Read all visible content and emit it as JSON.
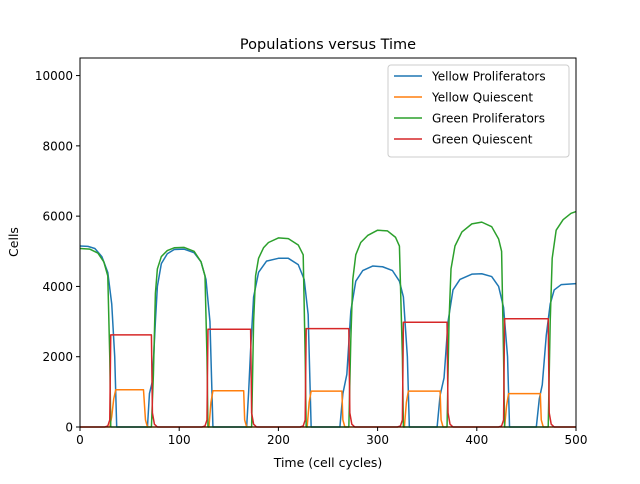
{
  "chart_data": {
    "type": "line",
    "title": "Populations versus Time",
    "xlabel": "Time (cell cycles)",
    "ylabel": "Cells",
    "xlim": [
      0,
      500
    ],
    "ylim": [
      0,
      10500
    ],
    "xticks": [
      0,
      100,
      200,
      300,
      400,
      500
    ],
    "yticks": [
      0,
      2000,
      4000,
      6000,
      8000,
      10000
    ],
    "grid": false,
    "legend_position": "top-right",
    "series": [
      {
        "name": "Yellow Proliferators",
        "color": "#1f77b4",
        "points": [
          [
            0,
            5150
          ],
          [
            8,
            5140
          ],
          [
            15,
            5080
          ],
          [
            22,
            4850
          ],
          [
            28,
            4400
          ],
          [
            32,
            3500
          ],
          [
            35,
            2000
          ],
          [
            37,
            0
          ],
          [
            68,
            0
          ],
          [
            70,
            950
          ],
          [
            73,
            1300
          ],
          [
            76,
            3000
          ],
          [
            78,
            4000
          ],
          [
            82,
            4650
          ],
          [
            88,
            4930
          ],
          [
            95,
            5050
          ],
          [
            105,
            5060
          ],
          [
            115,
            4960
          ],
          [
            122,
            4700
          ],
          [
            127,
            4200
          ],
          [
            131,
            3000
          ],
          [
            134,
            0
          ],
          [
            168,
            0
          ],
          [
            170,
            1000
          ],
          [
            172,
            2200
          ],
          [
            175,
            3700
          ],
          [
            180,
            4400
          ],
          [
            188,
            4720
          ],
          [
            200,
            4800
          ],
          [
            210,
            4800
          ],
          [
            220,
            4620
          ],
          [
            226,
            4200
          ],
          [
            230,
            3200
          ],
          [
            233,
            0
          ],
          [
            262,
            0
          ],
          [
            265,
            950
          ],
          [
            269,
            1500
          ],
          [
            273,
            3300
          ],
          [
            278,
            4150
          ],
          [
            285,
            4450
          ],
          [
            295,
            4580
          ],
          [
            305,
            4560
          ],
          [
            315,
            4450
          ],
          [
            322,
            4150
          ],
          [
            326,
            3700
          ],
          [
            330,
            2000
          ],
          [
            332,
            0
          ],
          [
            360,
            0
          ],
          [
            363,
            900
          ],
          [
            367,
            1400
          ],
          [
            371,
            3000
          ],
          [
            376,
            3900
          ],
          [
            383,
            4200
          ],
          [
            395,
            4350
          ],
          [
            405,
            4360
          ],
          [
            415,
            4280
          ],
          [
            422,
            4000
          ],
          [
            427,
            3400
          ],
          [
            431,
            2000
          ],
          [
            433,
            0
          ],
          [
            460,
            0
          ],
          [
            463,
            800
          ],
          [
            466,
            1200
          ],
          [
            470,
            2600
          ],
          [
            474,
            3500
          ],
          [
            478,
            3900
          ],
          [
            485,
            4050
          ],
          [
            500,
            4080
          ]
        ]
      },
      {
        "name": "Yellow Quiescent",
        "color": "#ff7f0e",
        "points": [
          [
            0,
            0
          ],
          [
            30,
            0
          ],
          [
            32,
            300
          ],
          [
            34,
            800
          ],
          [
            36,
            1060
          ],
          [
            62,
            1060
          ],
          [
            64,
            1060
          ],
          [
            66,
            200
          ],
          [
            68,
            0
          ],
          [
            130,
            0
          ],
          [
            132,
            700
          ],
          [
            134,
            1030
          ],
          [
            165,
            1030
          ],
          [
            166,
            200
          ],
          [
            168,
            0
          ],
          [
            229,
            0
          ],
          [
            231,
            700
          ],
          [
            233,
            1020
          ],
          [
            264,
            1020
          ],
          [
            265,
            200
          ],
          [
            267,
            0
          ],
          [
            327,
            0
          ],
          [
            329,
            700
          ],
          [
            331,
            1020
          ],
          [
            363,
            1020
          ],
          [
            364,
            200
          ],
          [
            366,
            0
          ],
          [
            428,
            0
          ],
          [
            430,
            600
          ],
          [
            432,
            950
          ],
          [
            464,
            950
          ],
          [
            465,
            200
          ],
          [
            467,
            0
          ],
          [
            500,
            0
          ]
        ]
      },
      {
        "name": "Green Proliferators",
        "color": "#2ca02c",
        "points": [
          [
            0,
            5080
          ],
          [
            10,
            5060
          ],
          [
            18,
            4950
          ],
          [
            24,
            4700
          ],
          [
            28,
            4300
          ],
          [
            30,
            2000
          ],
          [
            31,
            0
          ],
          [
            72,
            0
          ],
          [
            74,
            1500
          ],
          [
            76,
            3800
          ],
          [
            78,
            4500
          ],
          [
            82,
            4850
          ],
          [
            88,
            5020
          ],
          [
            95,
            5100
          ],
          [
            105,
            5110
          ],
          [
            115,
            5000
          ],
          [
            122,
            4700
          ],
          [
            126,
            4300
          ],
          [
            128,
            2000
          ],
          [
            129,
            0
          ],
          [
            173,
            0
          ],
          [
            175,
            3000
          ],
          [
            177,
            4300
          ],
          [
            180,
            4800
          ],
          [
            185,
            5100
          ],
          [
            190,
            5250
          ],
          [
            200,
            5380
          ],
          [
            210,
            5360
          ],
          [
            220,
            5180
          ],
          [
            225,
            4900
          ],
          [
            227,
            2000
          ],
          [
            228,
            0
          ],
          [
            271,
            0
          ],
          [
            273,
            2500
          ],
          [
            275,
            4200
          ],
          [
            278,
            4900
          ],
          [
            283,
            5250
          ],
          [
            290,
            5450
          ],
          [
            300,
            5600
          ],
          [
            310,
            5580
          ],
          [
            318,
            5400
          ],
          [
            322,
            5150
          ],
          [
            325,
            2000
          ],
          [
            326,
            0
          ],
          [
            370,
            0
          ],
          [
            372,
            3000
          ],
          [
            374,
            4500
          ],
          [
            378,
            5150
          ],
          [
            385,
            5550
          ],
          [
            395,
            5780
          ],
          [
            405,
            5830
          ],
          [
            415,
            5700
          ],
          [
            422,
            5350
          ],
          [
            425,
            5000
          ],
          [
            427,
            2000
          ],
          [
            428,
            0
          ],
          [
            472,
            0
          ],
          [
            474,
            3000
          ],
          [
            476,
            4800
          ],
          [
            480,
            5600
          ],
          [
            487,
            5900
          ],
          [
            495,
            6080
          ],
          [
            500,
            6130
          ]
        ]
      },
      {
        "name": "Green Quiescent",
        "color": "#d62728",
        "points": [
          [
            0,
            0
          ],
          [
            25,
            0
          ],
          [
            28,
            30
          ],
          [
            30,
            200
          ],
          [
            31,
            2620
          ],
          [
            72,
            2620
          ],
          [
            73,
            400
          ],
          [
            75,
            80
          ],
          [
            78,
            0
          ],
          [
            123,
            0
          ],
          [
            126,
            30
          ],
          [
            128,
            200
          ],
          [
            129,
            2780
          ],
          [
            172,
            2780
          ],
          [
            173,
            400
          ],
          [
            175,
            80
          ],
          [
            178,
            0
          ],
          [
            222,
            0
          ],
          [
            225,
            30
          ],
          [
            227,
            200
          ],
          [
            228,
            2800
          ],
          [
            271,
            2800
          ],
          [
            272,
            400
          ],
          [
            274,
            80
          ],
          [
            277,
            0
          ],
          [
            320,
            0
          ],
          [
            323,
            30
          ],
          [
            325,
            200
          ],
          [
            326,
            2980
          ],
          [
            370,
            2980
          ],
          [
            371,
            400
          ],
          [
            373,
            80
          ],
          [
            376,
            0
          ],
          [
            422,
            0
          ],
          [
            425,
            30
          ],
          [
            427,
            200
          ],
          [
            428,
            3080
          ],
          [
            472,
            3080
          ],
          [
            473,
            400
          ],
          [
            475,
            80
          ],
          [
            478,
            0
          ],
          [
            500,
            0
          ]
        ]
      }
    ]
  }
}
